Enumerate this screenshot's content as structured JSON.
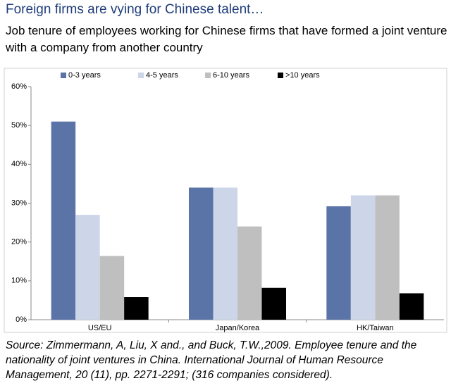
{
  "chart_data": {
    "type": "bar",
    "title": "Foreign firms are vying for Chinese talent…",
    "subtitle": "Job tenure of employees working for Chinese firms that have formed a joint venture with a company from another country",
    "note": "Source: Zimmermann, A, Liu, X and., and Buck, T.W.,2009. Employee tenure and the nationality of joint ventures in China. International Journal of Human Resource Management, 20 (11), pp. 2271-2291; (316  companies considered).",
    "categories": [
      "US/EU",
      "Japan/Korea",
      "HK/Taiwan"
    ],
    "series": [
      {
        "name": "0-3 years",
        "color": "#5b74a8",
        "values": [
          51,
          34,
          29.2
        ]
      },
      {
        "name": "4-5 years",
        "color": "#cdd6e8",
        "values": [
          27,
          34,
          32
        ]
      },
      {
        "name": "6-10 years",
        "color": "#bfbfbf",
        "values": [
          16.4,
          24,
          32
        ]
      },
      {
        "name": ">10 years",
        "color": "#000000",
        "values": [
          5.8,
          8.2,
          6.8
        ]
      }
    ],
    "ylim": [
      0,
      60
    ],
    "yticks": [
      {
        "value": 0,
        "label": "0%"
      },
      {
        "value": 10,
        "label": "10%"
      },
      {
        "value": 20,
        "label": "20%"
      },
      {
        "value": 30,
        "label": "30%"
      },
      {
        "value": 40,
        "label": "40%"
      },
      {
        "value": 50,
        "label": "50%"
      },
      {
        "value": 60,
        "label": "60%"
      }
    ],
    "legend": "top"
  }
}
